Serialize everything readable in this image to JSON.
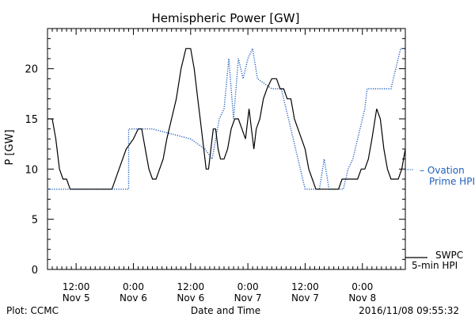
{
  "chart_data": {
    "type": "line",
    "title": "Hemispheric Power [GW]",
    "ylabel": "P [GW]",
    "xlabel": "Date and Time",
    "ylim": [
      0,
      24
    ],
    "yticks": [
      0,
      5,
      10,
      15,
      20
    ],
    "xlim": [
      "2016-11-05 06:00",
      "2016-11-08 09:00"
    ],
    "xticks": [
      {
        "t": "2016-11-05 12:00",
        "line1": "12:00",
        "line2": "Nov 5"
      },
      {
        "t": "2016-11-06 00:00",
        "line1": "0:00",
        "line2": "Nov 6"
      },
      {
        "t": "2016-11-06 12:00",
        "line1": "12:00",
        "line2": "Nov 6"
      },
      {
        "t": "2016-11-07 00:00",
        "line1": "0:00",
        "line2": "Nov 7"
      },
      {
        "t": "2016-11-07 12:00",
        "line1": "12:00",
        "line2": "Nov 7"
      },
      {
        "t": "2016-11-08 00:00",
        "line1": "0:00",
        "line2": "Nov 8"
      }
    ],
    "series": [
      {
        "legend_lines": [
          "SWPC",
          "5-min HPI"
        ],
        "color": "#000000",
        "style": "solid",
        "points": [
          [
            "2016-11-05 06:00",
            15
          ],
          [
            "2016-11-05 07:00",
            15
          ],
          [
            "2016-11-05 07:45",
            13
          ],
          [
            "2016-11-05 08:30",
            10
          ],
          [
            "2016-11-05 09:15",
            9
          ],
          [
            "2016-11-05 10:00",
            9
          ],
          [
            "2016-11-05 10:45",
            8
          ],
          [
            "2016-11-05 18:00",
            8
          ],
          [
            "2016-11-05 19:30",
            8
          ],
          [
            "2016-11-05 21:00",
            10
          ],
          [
            "2016-11-05 22:30",
            12
          ],
          [
            "2016-11-06 00:00",
            13
          ],
          [
            "2016-11-06 01:00",
            14
          ],
          [
            "2016-11-06 01:45",
            14
          ],
          [
            "2016-11-06 02:30",
            12
          ],
          [
            "2016-11-06 03:15",
            10
          ],
          [
            "2016-11-06 04:00",
            9
          ],
          [
            "2016-11-06 04:45",
            9
          ],
          [
            "2016-11-06 05:30",
            10
          ],
          [
            "2016-11-06 06:15",
            11
          ],
          [
            "2016-11-06 07:00",
            13
          ],
          [
            "2016-11-06 08:00",
            15
          ],
          [
            "2016-11-06 09:00",
            17
          ],
          [
            "2016-11-06 10:00",
            20
          ],
          [
            "2016-11-06 11:00",
            22
          ],
          [
            "2016-11-06 12:00",
            22
          ],
          [
            "2016-11-06 12:45",
            20
          ],
          [
            "2016-11-06 13:30",
            17
          ],
          [
            "2016-11-06 14:15",
            14
          ],
          [
            "2016-11-06 14:45",
            12
          ],
          [
            "2016-11-06 15:15",
            10
          ],
          [
            "2016-11-06 15:45",
            10
          ],
          [
            "2016-11-06 16:15",
            12
          ],
          [
            "2016-11-06 16:45",
            14
          ],
          [
            "2016-11-06 17:15",
            14
          ],
          [
            "2016-11-06 17:45",
            12
          ],
          [
            "2016-11-06 18:15",
            11
          ],
          [
            "2016-11-06 19:00",
            11
          ],
          [
            "2016-11-06 19:45",
            12
          ],
          [
            "2016-11-06 20:30",
            14
          ],
          [
            "2016-11-06 21:15",
            15
          ],
          [
            "2016-11-06 22:00",
            15
          ],
          [
            "2016-11-06 22:45",
            14
          ],
          [
            "2016-11-06 23:30",
            13
          ],
          [
            "2016-11-07 00:15",
            16
          ],
          [
            "2016-11-07 00:45",
            14
          ],
          [
            "2016-11-07 01:15",
            12
          ],
          [
            "2016-11-07 01:45",
            14
          ],
          [
            "2016-11-07 02:30",
            15
          ],
          [
            "2016-11-07 03:15",
            17
          ],
          [
            "2016-11-07 04:00",
            18
          ],
          [
            "2016-11-07 05:00",
            19
          ],
          [
            "2016-11-07 06:00",
            19
          ],
          [
            "2016-11-07 06:45",
            18
          ],
          [
            "2016-11-07 07:30",
            18
          ],
          [
            "2016-11-07 08:15",
            17
          ],
          [
            "2016-11-07 09:00",
            17
          ],
          [
            "2016-11-07 09:45",
            15
          ],
          [
            "2016-11-07 10:30",
            14
          ],
          [
            "2016-11-07 11:15",
            13
          ],
          [
            "2016-11-07 12:00",
            12
          ],
          [
            "2016-11-07 12:45",
            10
          ],
          [
            "2016-11-07 13:30",
            9
          ],
          [
            "2016-11-07 14:15",
            8
          ],
          [
            "2016-11-07 19:00",
            8
          ],
          [
            "2016-11-07 19:45",
            9
          ],
          [
            "2016-11-07 23:00",
            9
          ],
          [
            "2016-11-07 23:45",
            10
          ],
          [
            "2016-11-08 00:30",
            10
          ],
          [
            "2016-11-08 01:15",
            11
          ],
          [
            "2016-11-08 02:00",
            13
          ],
          [
            "2016-11-08 03:00",
            16
          ],
          [
            "2016-11-08 03:45",
            15
          ],
          [
            "2016-11-08 04:30",
            12
          ],
          [
            "2016-11-08 05:15",
            10
          ],
          [
            "2016-11-08 06:00",
            9
          ],
          [
            "2016-11-08 07:30",
            9
          ],
          [
            "2016-11-08 08:15",
            10
          ],
          [
            "2016-11-08 09:00",
            12
          ]
        ]
      },
      {
        "legend_lines": [
          "– Ovation",
          "Prime HPI"
        ],
        "color": "#1f5fbf",
        "style": "dotted",
        "points": [
          [
            "2016-11-05 06:00",
            8
          ],
          [
            "2016-11-05 23:00",
            8
          ],
          [
            "2016-11-05 23:00",
            14
          ],
          [
            "2016-11-06 04:00",
            14
          ],
          [
            "2016-11-06 12:00",
            13
          ],
          [
            "2016-11-06 15:00",
            12
          ],
          [
            "2016-11-06 16:30",
            11
          ],
          [
            "2016-11-06 18:00",
            15
          ],
          [
            "2016-11-06 19:00",
            16
          ],
          [
            "2016-11-06 20:00",
            21
          ],
          [
            "2016-11-06 21:00",
            15
          ],
          [
            "2016-11-06 22:00",
            21
          ],
          [
            "2016-11-06 23:00",
            19
          ],
          [
            "2016-11-07 00:00",
            21
          ],
          [
            "2016-11-07 01:00",
            22
          ],
          [
            "2016-11-07 02:00",
            19
          ],
          [
            "2016-11-07 05:00",
            18
          ],
          [
            "2016-11-07 07:00",
            18
          ],
          [
            "2016-11-07 09:00",
            14
          ],
          [
            "2016-11-07 11:00",
            10
          ],
          [
            "2016-11-07 12:00",
            8
          ],
          [
            "2016-11-07 15:00",
            8
          ],
          [
            "2016-11-07 16:00",
            11
          ],
          [
            "2016-11-07 17:00",
            8
          ],
          [
            "2016-11-07 20:00",
            8
          ],
          [
            "2016-11-07 21:00",
            10
          ],
          [
            "2016-11-07 22:00",
            11
          ],
          [
            "2016-11-07 23:00",
            13
          ],
          [
            "2016-11-08 00:00",
            15
          ],
          [
            "2016-11-08 00:30",
            16
          ],
          [
            "2016-11-08 01:00",
            18
          ],
          [
            "2016-11-08 06:00",
            18
          ],
          [
            "2016-11-08 08:00",
            22
          ],
          [
            "2016-11-08 09:00",
            22
          ]
        ]
      }
    ]
  },
  "footer": {
    "left": "Plot: CCMC",
    "right": "2016/11/08 09:55:32"
  }
}
